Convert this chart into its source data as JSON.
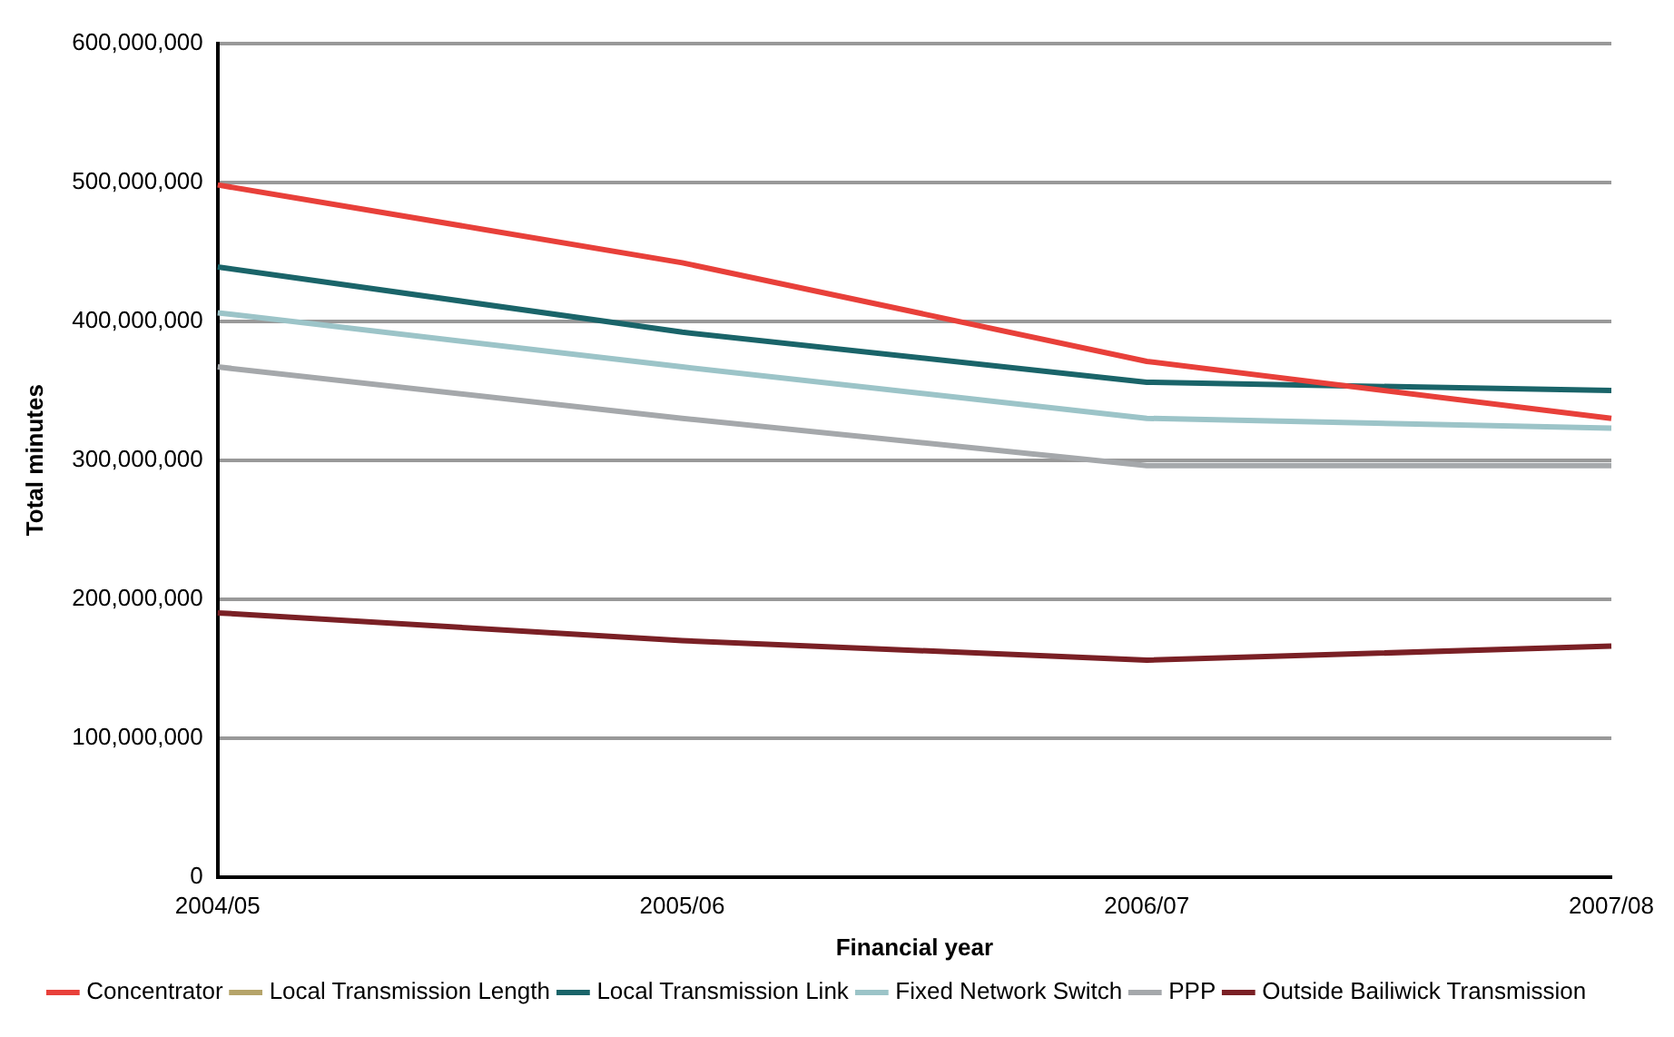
{
  "chart_data": {
    "type": "line",
    "xlabel": "Financial year",
    "ylabel": "Total minutes",
    "categories": [
      "2004/05",
      "2005/06",
      "2006/07",
      "2007/08"
    ],
    "series": [
      {
        "name": "Concentrator",
        "color": "#e8403a",
        "values": [
          498000000,
          442000000,
          371000000,
          330000000
        ]
      },
      {
        "name": "Local Transmission Length",
        "color": "#b5a46a",
        "values": [
          null,
          null,
          null,
          null
        ]
      },
      {
        "name": "Local Transmission Link",
        "color": "#1a6469",
        "values": [
          439000000,
          392000000,
          356000000,
          350000000
        ]
      },
      {
        "name": "Fixed Network Switch",
        "color": "#9cc4c8",
        "values": [
          406000000,
          367000000,
          330000000,
          323000000
        ]
      },
      {
        "name": "PPP",
        "color": "#a5a8ab",
        "values": [
          367000000,
          330000000,
          296000000,
          296000000
        ]
      },
      {
        "name": "Outside Bailiwick Transmission",
        "color": "#7a2025",
        "values": [
          190000000,
          170000000,
          156000000,
          166000000
        ]
      }
    ],
    "ylim": [
      0,
      600000000
    ],
    "yticks": [
      0,
      {
        "value": 100000000,
        "label": "100,000,000"
      },
      {
        "value": 200000000,
        "label": "200,000,000"
      },
      {
        "value": 300000000,
        "label": "300,000,000"
      },
      {
        "value": 400000000,
        "label": "400,000,000"
      },
      {
        "value": 500000000,
        "label": "500,000,000"
      },
      {
        "value": 600000000,
        "label": "600,000,000"
      }
    ],
    "grid": "y",
    "legend": "bottom",
    "marker": "none",
    "line_style": "solid"
  }
}
